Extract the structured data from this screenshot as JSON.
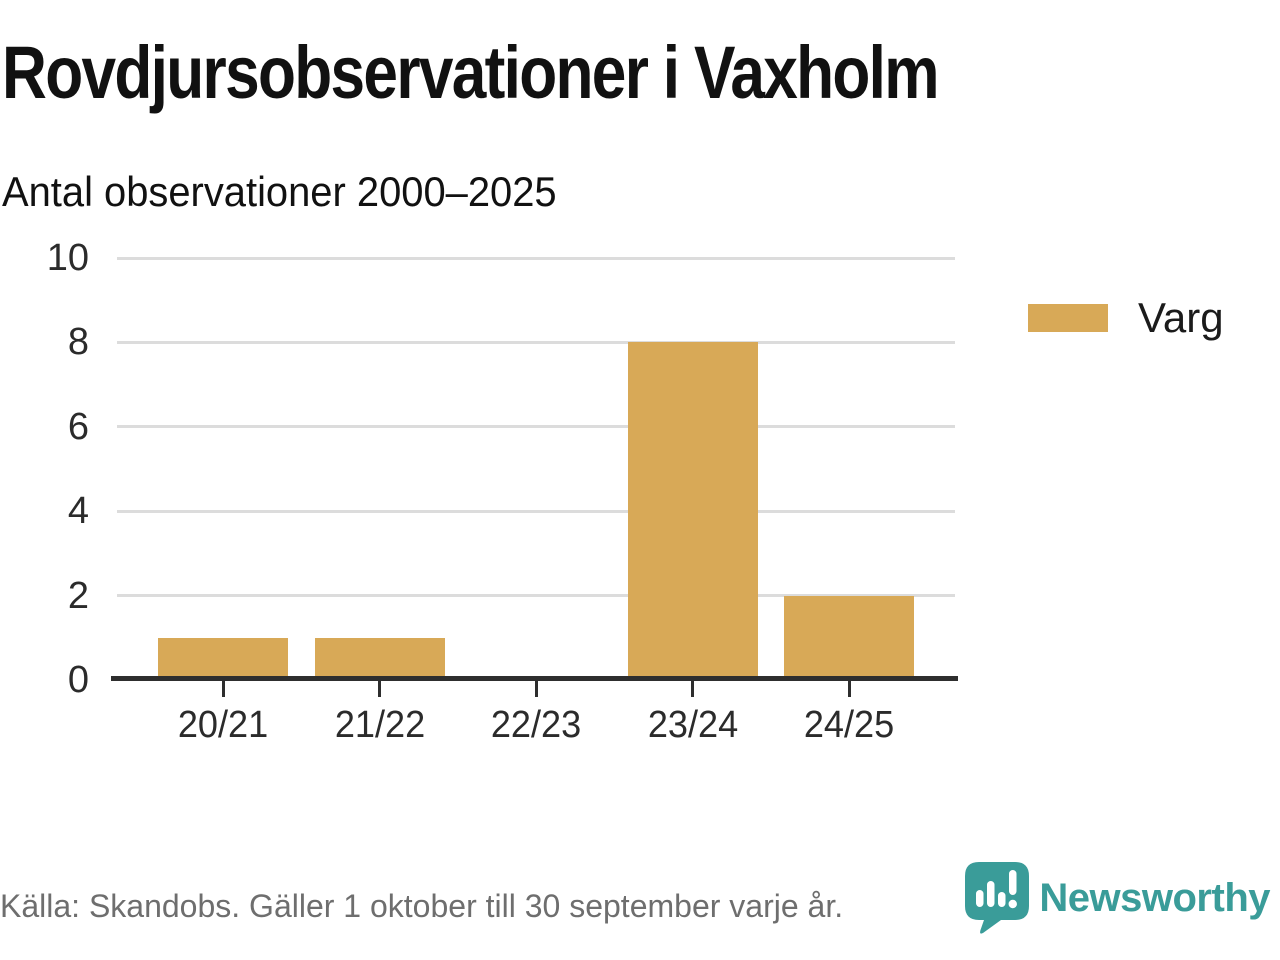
{
  "title": "Rovdjursobservationer i Vaxholm",
  "subtitle": "Antal observationer 2000–2025",
  "legend": {
    "label": "Varg",
    "color": "#d8a957"
  },
  "footer": {
    "source": "Källa: Skandobs. Gäller 1 oktober till 30 september varje år."
  },
  "brand": {
    "name": "Newsworthy",
    "color": "#3a9c99"
  },
  "colors": {
    "bar": "#d8a957",
    "gridline": "#dcdcdc",
    "axis": "#2e2e2e",
    "text": "#111111",
    "muted_text": "#6e6e6e",
    "teal": "#3a9c99"
  },
  "chart_data": {
    "type": "bar",
    "title": "Rovdjursobservationer i Vaxholm",
    "subtitle": "Antal observationer 2000–2025",
    "categories": [
      "20/21",
      "21/22",
      "22/23",
      "23/24",
      "24/25"
    ],
    "series": [
      {
        "name": "Varg",
        "values": [
          1,
          1,
          0,
          8,
          2
        ]
      }
    ],
    "xlabel": "",
    "ylabel": "",
    "ylim": [
      0,
      10
    ],
    "yticks": [
      0,
      2,
      4,
      6,
      8,
      10
    ],
    "grid": true,
    "legend_position": "right",
    "bar_color": "#d8a957",
    "source": "Källa: Skandobs. Gäller 1 oktober till 30 september varje år."
  }
}
